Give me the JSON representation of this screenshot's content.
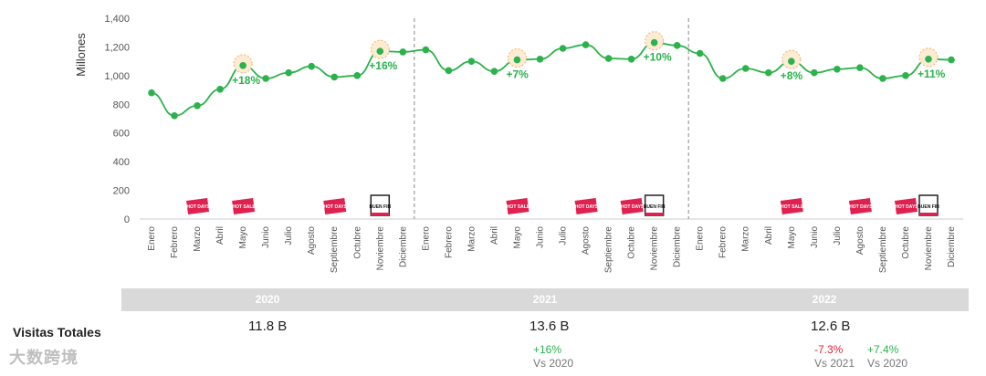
{
  "chart_data": {
    "type": "line",
    "ylabel": "Millones",
    "ylim": [
      0,
      1400
    ],
    "yticks": [
      0,
      200,
      400,
      600,
      800,
      1000,
      1200,
      1400
    ],
    "ytick_labels": [
      "0",
      "200",
      "400",
      "600",
      "800",
      "1,000",
      "1,200",
      "1,400"
    ],
    "categories": [
      "Enero",
      "Febrero",
      "Marzo",
      "Abril",
      "Mayo",
      "Junio",
      "Julio",
      "Agosto",
      "Septiembre",
      "Octubre",
      "Noviembre",
      "Diciembre",
      "Enero",
      "Febrero",
      "Marzo",
      "Abril",
      "Mayo",
      "Junio",
      "Julio",
      "Agosto",
      "Septiembre",
      "Octubre",
      "Noviembre",
      "Diciembre",
      "Enero",
      "Febrero",
      "Marzo",
      "Abril",
      "Mayo",
      "Junio",
      "Julio",
      "Agosto",
      "Septiembre",
      "Octubre",
      "Noviembre",
      "Diciembre"
    ],
    "series": [
      {
        "name": "Visitas",
        "color": "#2bb24c",
        "values": [
          880,
          720,
          790,
          905,
          1070,
          980,
          1020,
          1065,
          990,
          1000,
          1170,
          1165,
          1180,
          1035,
          1100,
          1030,
          1110,
          1115,
          1190,
          1215,
          1120,
          1115,
          1230,
          1210,
          1155,
          980,
          1050,
          1020,
          1100,
          1020,
          1045,
          1055,
          980,
          1000,
          1115,
          1110
        ]
      }
    ],
    "annotations": [
      {
        "index": 4,
        "text": "+18%"
      },
      {
        "index": 10,
        "text": "+16%"
      },
      {
        "index": 16,
        "text": "+7%"
      },
      {
        "index": 22,
        "text": "+10%"
      },
      {
        "index": 28,
        "text": "+8%"
      },
      {
        "index": 34,
        "text": "+11%"
      }
    ],
    "event_badges": [
      {
        "index": 2,
        "kind": "hot-days"
      },
      {
        "index": 4,
        "kind": "hot-sale"
      },
      {
        "index": 8,
        "kind": "hot-days"
      },
      {
        "index": 10,
        "kind": "buen-fin"
      },
      {
        "index": 16,
        "kind": "hot-sale"
      },
      {
        "index": 19,
        "kind": "hot-days"
      },
      {
        "index": 21,
        "kind": "hot-days"
      },
      {
        "index": 22,
        "kind": "buen-fin"
      },
      {
        "index": 28,
        "kind": "hot-sale"
      },
      {
        "index": 31,
        "kind": "hot-days"
      },
      {
        "index": 33,
        "kind": "hot-days"
      },
      {
        "index": 34,
        "kind": "buen-fin"
      }
    ],
    "badge_text": {
      "hot-sale": "HOT SALE",
      "hot-days": "HOT DAYS",
      "buen-fin": "BUEN FIN"
    },
    "year_dividers_after": [
      11,
      23
    ]
  },
  "years": [
    "2020",
    "2021",
    "2022"
  ],
  "visits": {
    "label": "Visitas Totales",
    "totals": [
      "11.8 B",
      "13.6 B",
      "12.6 B"
    ],
    "comparisons": {
      "y2021": {
        "value": "+16%",
        "vs": "Vs 2020"
      },
      "y2022_vs2021": {
        "value": "-7.3%",
        "vs": "Vs 2021"
      },
      "y2022_vs2020": {
        "value": "+7.4%",
        "vs": "Vs 2020"
      }
    }
  },
  "watermark": "大数跨境",
  "colors": {
    "line": "#2bb24c",
    "badge": "#e0214f",
    "negative": "#e0213a",
    "year_bar": "#d9d9d9"
  }
}
